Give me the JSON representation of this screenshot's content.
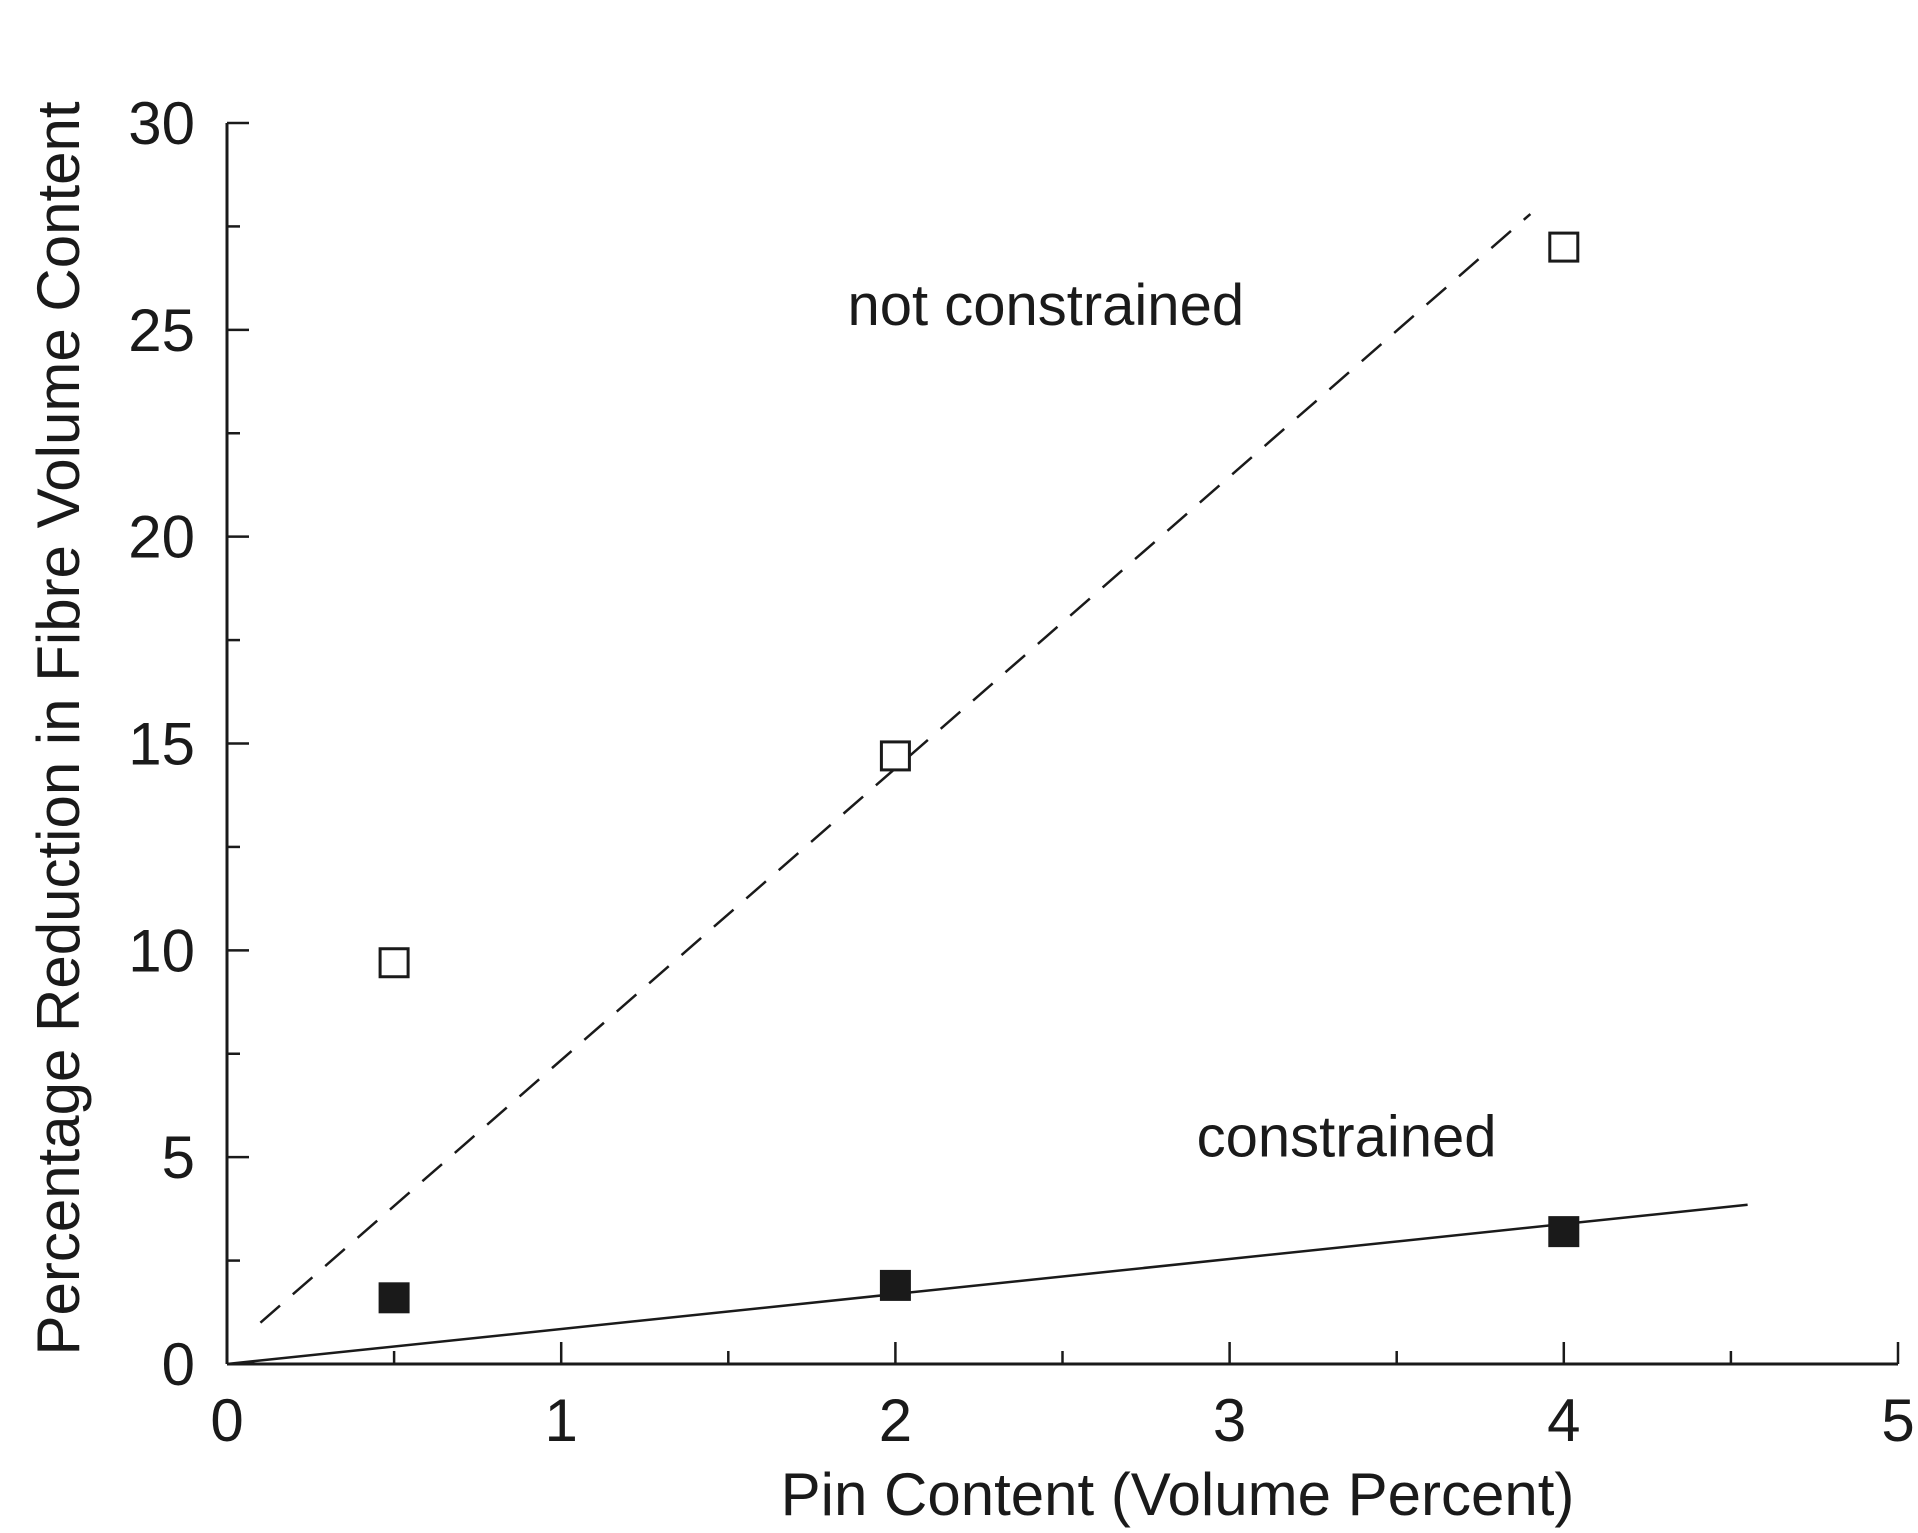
{
  "chart_data": {
    "type": "scatter",
    "xlabel": "Pin Content (Volume Percent)",
    "ylabel": "Percentage Reduction in Fibre Volume Content",
    "xlim": [
      0,
      5
    ],
    "ylim": [
      0,
      30
    ],
    "x_ticks": [
      0,
      1,
      2,
      3,
      4,
      5
    ],
    "y_ticks": [
      0,
      5,
      10,
      15,
      20,
      25,
      30
    ],
    "x_tick_labels": [
      "0",
      "1",
      "2",
      "3",
      "4",
      "5"
    ],
    "y_tick_labels": [
      "0",
      "5",
      "10",
      "15",
      "20",
      "25",
      "30"
    ],
    "series": [
      {
        "name": "not constrained",
        "marker": "open-square",
        "color": "#1a1a1a",
        "x": [
          0.5,
          2,
          4
        ],
        "y": [
          9.7,
          14.7,
          27
        ],
        "fit_line": {
          "style": "dashed",
          "x": [
            0.1,
            3.9
          ],
          "y": [
            1.0,
            27.8
          ]
        }
      },
      {
        "name": "constrained",
        "marker": "filled-square",
        "color": "#1a1a1a",
        "x": [
          0.5,
          2,
          4
        ],
        "y": [
          1.6,
          1.9,
          3.2
        ],
        "fit_line": {
          "style": "solid",
          "x": [
            0,
            4.55
          ],
          "y": [
            0,
            3.85
          ]
        }
      }
    ],
    "annotations": [
      {
        "text": "not constrained",
        "x": 2.45,
        "y": 25.6
      },
      {
        "text": "constrained",
        "x": 3.35,
        "y": 5.5
      }
    ],
    "grid": false,
    "legend": "none"
  }
}
